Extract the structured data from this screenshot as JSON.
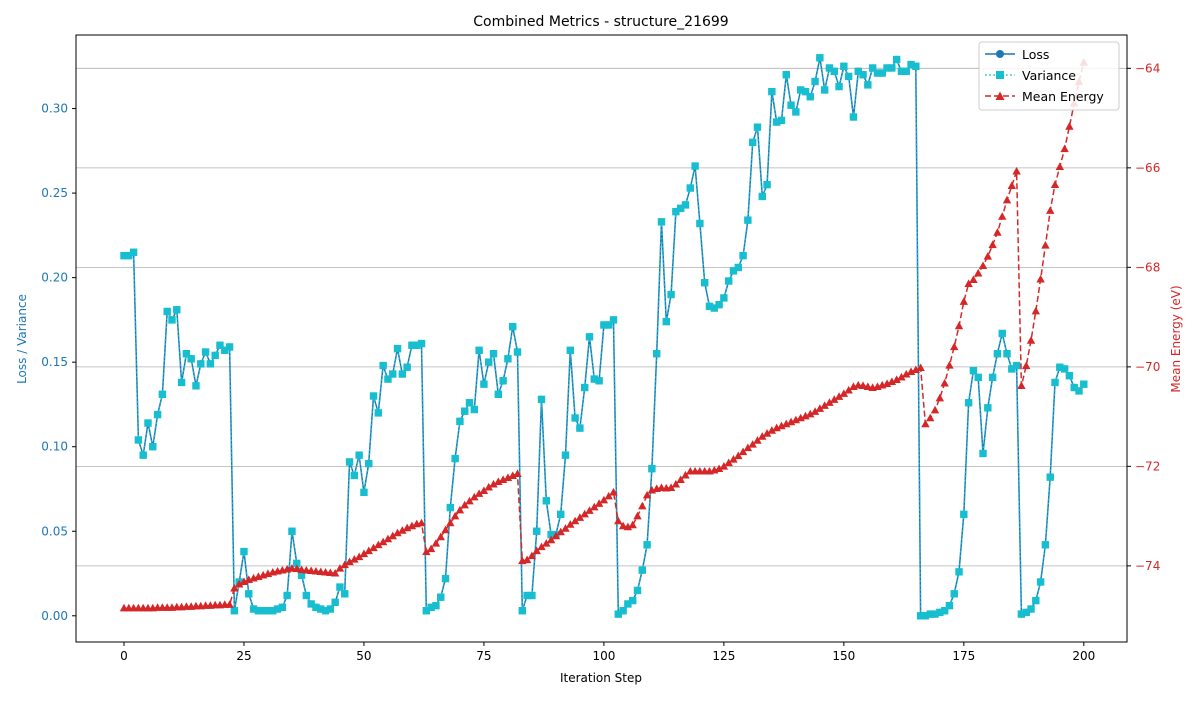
{
  "chart_data": {
    "type": "line",
    "title": "Combined Metrics - structure_21699",
    "xlabel": "Iteration Step",
    "ylabel_left": "Loss / Variance",
    "ylabel_right": "Mean Energy (eV)",
    "xlim": [
      -10,
      209
    ],
    "ylim_left": [
      -0.0155,
      0.3435
    ],
    "ylim_right": [
      -75.53,
      -63.33
    ],
    "xticks": [
      0,
      25,
      50,
      75,
      100,
      125,
      150,
      175,
      200
    ],
    "yticks_left": [
      0.0,
      0.05,
      0.1,
      0.15,
      0.2,
      0.25,
      0.3
    ],
    "yticks_left_labels": [
      "0.00",
      "0.05",
      "0.10",
      "0.15",
      "0.20",
      "0.25",
      "0.30"
    ],
    "yticks_right": [
      -74,
      -72,
      -70,
      -68,
      -66,
      -64
    ],
    "grid": "horizontal (right axis)",
    "legend_position": "top-right",
    "colors": {
      "loss": "#1f77b4",
      "variance": "#17becf",
      "energy": "#d62728",
      "axis": "#000000",
      "grid": "#b0b0b0"
    },
    "series": [
      {
        "name": "Loss",
        "axis": "left",
        "style": "solid line, circle markers",
        "values": [
          0.213,
          0.213,
          0.215,
          0.104,
          0.095,
          0.114,
          0.1,
          0.119,
          0.131,
          0.18,
          0.175,
          0.181,
          0.138,
          0.155,
          0.152,
          0.136,
          0.149,
          0.156,
          0.149,
          0.154,
          0.16,
          0.157,
          0.159,
          0.003,
          0.02,
          0.038,
          0.013,
          0.004,
          0.003,
          0.003,
          0.003,
          0.003,
          0.004,
          0.005,
          0.012,
          0.05,
          0.031,
          0.024,
          0.012,
          0.007,
          0.005,
          0.004,
          0.003,
          0.004,
          0.008,
          0.017,
          0.013,
          0.091,
          0.083,
          0.095,
          0.073,
          0.09,
          0.13,
          0.12,
          0.148,
          0.14,
          0.143,
          0.158,
          0.143,
          0.147,
          0.16,
          0.16,
          0.161,
          0.003,
          0.005,
          0.006,
          0.011,
          0.022,
          0.064,
          0.093,
          0.115,
          0.121,
          0.126,
          0.122,
          0.157,
          0.137,
          0.15,
          0.155,
          0.131,
          0.139,
          0.152,
          0.171,
          0.156,
          0.003,
          0.012,
          0.012,
          0.05,
          0.128,
          0.068,
          0.048,
          0.048,
          0.06,
          0.095,
          0.157,
          0.117,
          0.111,
          0.135,
          0.165,
          0.14,
          0.139,
          0.172,
          0.172,
          0.175,
          0.001,
          0.003,
          0.007,
          0.009,
          0.015,
          0.027,
          0.042,
          0.087,
          0.155,
          0.233,
          0.174,
          0.19,
          0.239,
          0.241,
          0.243,
          0.253,
          0.266,
          0.232,
          0.197,
          0.183,
          0.182,
          0.184,
          0.188,
          0.198,
          0.204,
          0.206,
          0.213,
          0.234,
          0.28,
          0.289,
          0.248,
          0.255,
          0.31,
          0.292,
          0.293,
          0.32,
          0.302,
          0.298,
          0.311,
          0.31,
          0.307,
          0.316,
          0.33,
          0.311,
          0.324,
          0.322,
          0.313,
          0.325,
          0.319,
          0.295,
          0.322,
          0.32,
          0.314,
          0.324,
          0.321,
          0.321,
          0.324,
          0.324,
          0.329,
          0.322,
          0.322,
          0.326,
          0.325,
          0.0,
          0.0,
          0.001,
          0.001,
          0.002,
          0.003,
          0.006,
          0.013,
          0.026,
          0.06,
          0.126,
          0.145,
          0.141,
          0.096,
          0.123,
          0.141,
          0.155,
          0.167,
          0.155,
          0.146,
          0.148,
          0.001,
          0.002,
          0.004,
          0.009,
          0.02,
          0.042,
          0.082,
          0.138,
          0.147,
          0.146,
          0.142,
          0.135,
          0.133,
          0.137
        ]
      },
      {
        "name": "Variance",
        "axis": "left",
        "style": "dotted line, square markers",
        "values": [
          0.213,
          0.213,
          0.215,
          0.104,
          0.095,
          0.114,
          0.1,
          0.119,
          0.131,
          0.18,
          0.175,
          0.181,
          0.138,
          0.155,
          0.152,
          0.136,
          0.149,
          0.156,
          0.149,
          0.154,
          0.16,
          0.157,
          0.159,
          0.003,
          0.02,
          0.038,
          0.013,
          0.004,
          0.003,
          0.003,
          0.003,
          0.003,
          0.004,
          0.005,
          0.012,
          0.05,
          0.031,
          0.024,
          0.012,
          0.007,
          0.005,
          0.004,
          0.003,
          0.004,
          0.008,
          0.017,
          0.013,
          0.091,
          0.083,
          0.095,
          0.073,
          0.09,
          0.13,
          0.12,
          0.148,
          0.14,
          0.143,
          0.158,
          0.143,
          0.147,
          0.16,
          0.16,
          0.161,
          0.003,
          0.005,
          0.006,
          0.011,
          0.022,
          0.064,
          0.093,
          0.115,
          0.121,
          0.126,
          0.122,
          0.157,
          0.137,
          0.15,
          0.155,
          0.131,
          0.139,
          0.152,
          0.171,
          0.156,
          0.003,
          0.012,
          0.012,
          0.05,
          0.128,
          0.068,
          0.048,
          0.048,
          0.06,
          0.095,
          0.157,
          0.117,
          0.111,
          0.135,
          0.165,
          0.14,
          0.139,
          0.172,
          0.172,
          0.175,
          0.001,
          0.003,
          0.007,
          0.009,
          0.015,
          0.027,
          0.042,
          0.087,
          0.155,
          0.233,
          0.174,
          0.19,
          0.239,
          0.241,
          0.243,
          0.253,
          0.266,
          0.232,
          0.197,
          0.183,
          0.182,
          0.184,
          0.188,
          0.198,
          0.204,
          0.206,
          0.213,
          0.234,
          0.28,
          0.289,
          0.248,
          0.255,
          0.31,
          0.292,
          0.293,
          0.32,
          0.302,
          0.298,
          0.311,
          0.31,
          0.307,
          0.316,
          0.33,
          0.311,
          0.324,
          0.322,
          0.313,
          0.325,
          0.319,
          0.295,
          0.322,
          0.32,
          0.314,
          0.324,
          0.321,
          0.321,
          0.324,
          0.324,
          0.329,
          0.322,
          0.322,
          0.326,
          0.325,
          0.0,
          0.0,
          0.001,
          0.001,
          0.002,
          0.003,
          0.006,
          0.013,
          0.026,
          0.06,
          0.126,
          0.145,
          0.141,
          0.096,
          0.123,
          0.141,
          0.155,
          0.167,
          0.155,
          0.146,
          0.148,
          0.001,
          0.002,
          0.004,
          0.009,
          0.02,
          0.042,
          0.082,
          0.138,
          0.147,
          0.146,
          0.142,
          0.135,
          0.133,
          0.137
        ]
      },
      {
        "name": "Mean Energy",
        "axis": "right",
        "style": "dashed line, triangle markers",
        "values": [
          -74.85,
          -74.85,
          -74.85,
          -74.85,
          -74.85,
          -74.85,
          -74.85,
          -74.84,
          -74.84,
          -74.84,
          -74.84,
          -74.83,
          -74.83,
          -74.82,
          -74.82,
          -74.81,
          -74.81,
          -74.8,
          -74.8,
          -74.79,
          -74.79,
          -74.78,
          -74.78,
          -74.45,
          -74.37,
          -74.32,
          -74.28,
          -74.25,
          -74.22,
          -74.19,
          -74.16,
          -74.13,
          -74.11,
          -74.09,
          -74.07,
          -74.05,
          -74.06,
          -74.08,
          -74.09,
          -74.1,
          -74.11,
          -74.12,
          -74.13,
          -74.14,
          -74.15,
          -74.05,
          -73.98,
          -73.92,
          -73.87,
          -73.82,
          -73.76,
          -73.7,
          -73.64,
          -73.58,
          -73.52,
          -73.46,
          -73.4,
          -73.34,
          -73.29,
          -73.24,
          -73.2,
          -73.16,
          -73.14,
          -73.72,
          -73.66,
          -73.55,
          -73.42,
          -73.28,
          -73.14,
          -73.0,
          -72.88,
          -72.78,
          -72.7,
          -72.62,
          -72.55,
          -72.49,
          -72.42,
          -72.36,
          -72.31,
          -72.27,
          -72.23,
          -72.19,
          -72.15,
          -73.9,
          -73.88,
          -73.8,
          -73.7,
          -73.62,
          -73.55,
          -73.48,
          -73.4,
          -73.32,
          -73.25,
          -73.17,
          -73.1,
          -73.03,
          -72.96,
          -72.89,
          -72.82,
          -72.75,
          -72.68,
          -72.6,
          -72.52,
          -73.1,
          -73.2,
          -73.22,
          -73.18,
          -73.0,
          -72.8,
          -72.58,
          -72.48,
          -72.45,
          -72.43,
          -72.44,
          -72.43,
          -72.36,
          -72.27,
          -72.18,
          -72.1,
          -72.1,
          -72.1,
          -72.1,
          -72.1,
          -72.08,
          -72.05,
          -72.0,
          -71.93,
          -71.86,
          -71.79,
          -71.71,
          -71.63,
          -71.56,
          -71.48,
          -71.4,
          -71.34,
          -71.28,
          -71.23,
          -71.19,
          -71.15,
          -71.11,
          -71.07,
          -71.03,
          -70.99,
          -70.95,
          -70.9,
          -70.84,
          -70.78,
          -70.72,
          -70.66,
          -70.6,
          -70.54,
          -70.47,
          -70.4,
          -70.37,
          -70.38,
          -70.4,
          -70.42,
          -70.4,
          -70.37,
          -70.34,
          -70.3,
          -70.26,
          -70.21,
          -70.15,
          -70.1,
          -70.06,
          -70.02,
          -71.15,
          -71.03,
          -70.87,
          -70.63,
          -70.33,
          -69.97,
          -69.6,
          -69.18,
          -68.69,
          -68.33,
          -68.25,
          -68.12,
          -67.97,
          -67.78,
          -67.55,
          -67.3,
          -66.98,
          -66.65,
          -66.36,
          -66.07,
          -70.38,
          -69.98,
          -69.47,
          -68.88,
          -68.24,
          -67.56,
          -66.86,
          -66.34,
          -65.98,
          -65.62,
          -65.17,
          -64.7,
          -64.27,
          -63.88
        ]
      }
    ]
  }
}
